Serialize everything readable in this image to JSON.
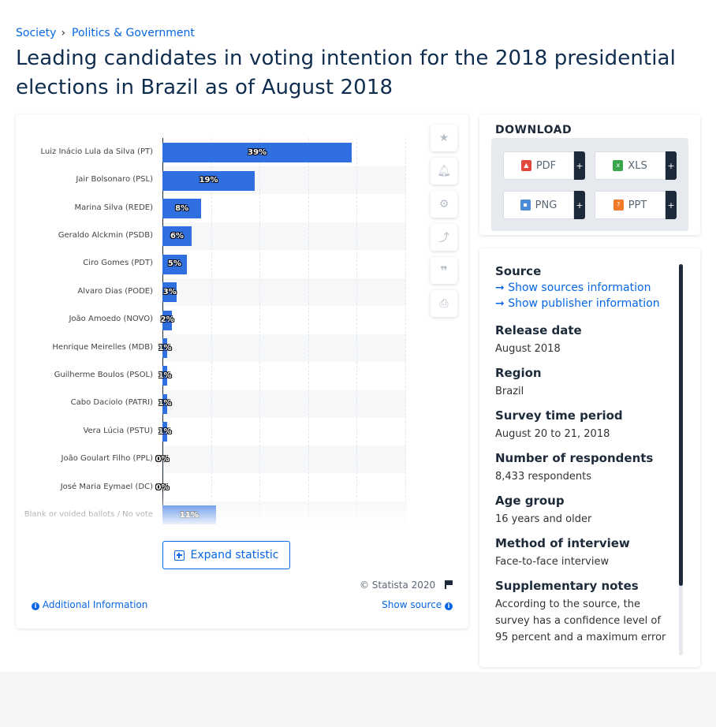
{
  "breadcrumb": [
    "Society",
    "Politics & Government"
  ],
  "breadcrumb_sep": "›",
  "page_title": "Leading candidates in voting intention for the 2018 presidential elections in Brazil as of August 2018",
  "chart_data": {
    "type": "bar",
    "orientation": "horizontal",
    "categories": [
      "Luiz Inácio Lula da Silva (PT)",
      "Jair Bolsonaro (PSL)",
      "Marina Silva (REDE)",
      "Geraldo Alckmin (PSDB)",
      "Ciro Gomes (PDT)",
      "Alvaro Dias (PODE)",
      "João Amoedo (NOVO)",
      "Henrique Meirelles (MDB)",
      "Guilherme Boulos (PSOL)",
      "Cabo Daciolo (PATRI)",
      "Vera Lúcia (PSTU)",
      "João Goulart Filho (PPL)",
      "José Maria Eymael (DC)",
      "Blank or voided ballots / No vote"
    ],
    "values": [
      39,
      19,
      8,
      6,
      5,
      3,
      2,
      1,
      1,
      1,
      1,
      0,
      0,
      11
    ],
    "value_labels": [
      "39%",
      "19%",
      "8%",
      "6%",
      "5%",
      "3%",
      "2%",
      "1%",
      "1%",
      "1%",
      "1%",
      "0%",
      "0%",
      "11%"
    ],
    "xlim": [
      0,
      50
    ],
    "grid": true,
    "bar_color": "#2f6fe0"
  },
  "expand_label": "Expand statistic",
  "copyright": "© Statista 2020",
  "additional_info": "Additional Information",
  "show_source": "Show source",
  "download": {
    "title": "DOWNLOAD",
    "buttons": [
      {
        "label": "PDF",
        "icon": "pdf-file-icon",
        "color": "#e0483e"
      },
      {
        "label": "XLS",
        "icon": "xls-file-icon",
        "color": "#3aa64c"
      },
      {
        "label": "PNG",
        "icon": "png-file-icon",
        "color": "#4c8bd6"
      },
      {
        "label": "PPT",
        "icon": "ppt-file-icon",
        "color": "#f07a2a"
      }
    ],
    "plus": "+"
  },
  "meta": {
    "source_heading": "Source",
    "show_sources": "Show sources information",
    "show_publisher": "Show publisher information",
    "release_heading": "Release date",
    "release_value": "August 2018",
    "region_heading": "Region",
    "region_value": "Brazil",
    "survey_heading": "Survey time period",
    "survey_value": "August 20 to 21, 2018",
    "respondents_heading": "Number of respondents",
    "respondents_value": "8,433 respondents",
    "age_heading": "Age group",
    "age_value": "16 years and older",
    "method_heading": "Method of interview",
    "method_value": "Face-to-face interview",
    "notes_heading": "Supplementary notes",
    "notes_value": "According to the source, the survey has a confidence level of 95 percent and a maximum error"
  },
  "colors": {
    "accent": "#0666e5",
    "title": "#0f2d4e"
  }
}
